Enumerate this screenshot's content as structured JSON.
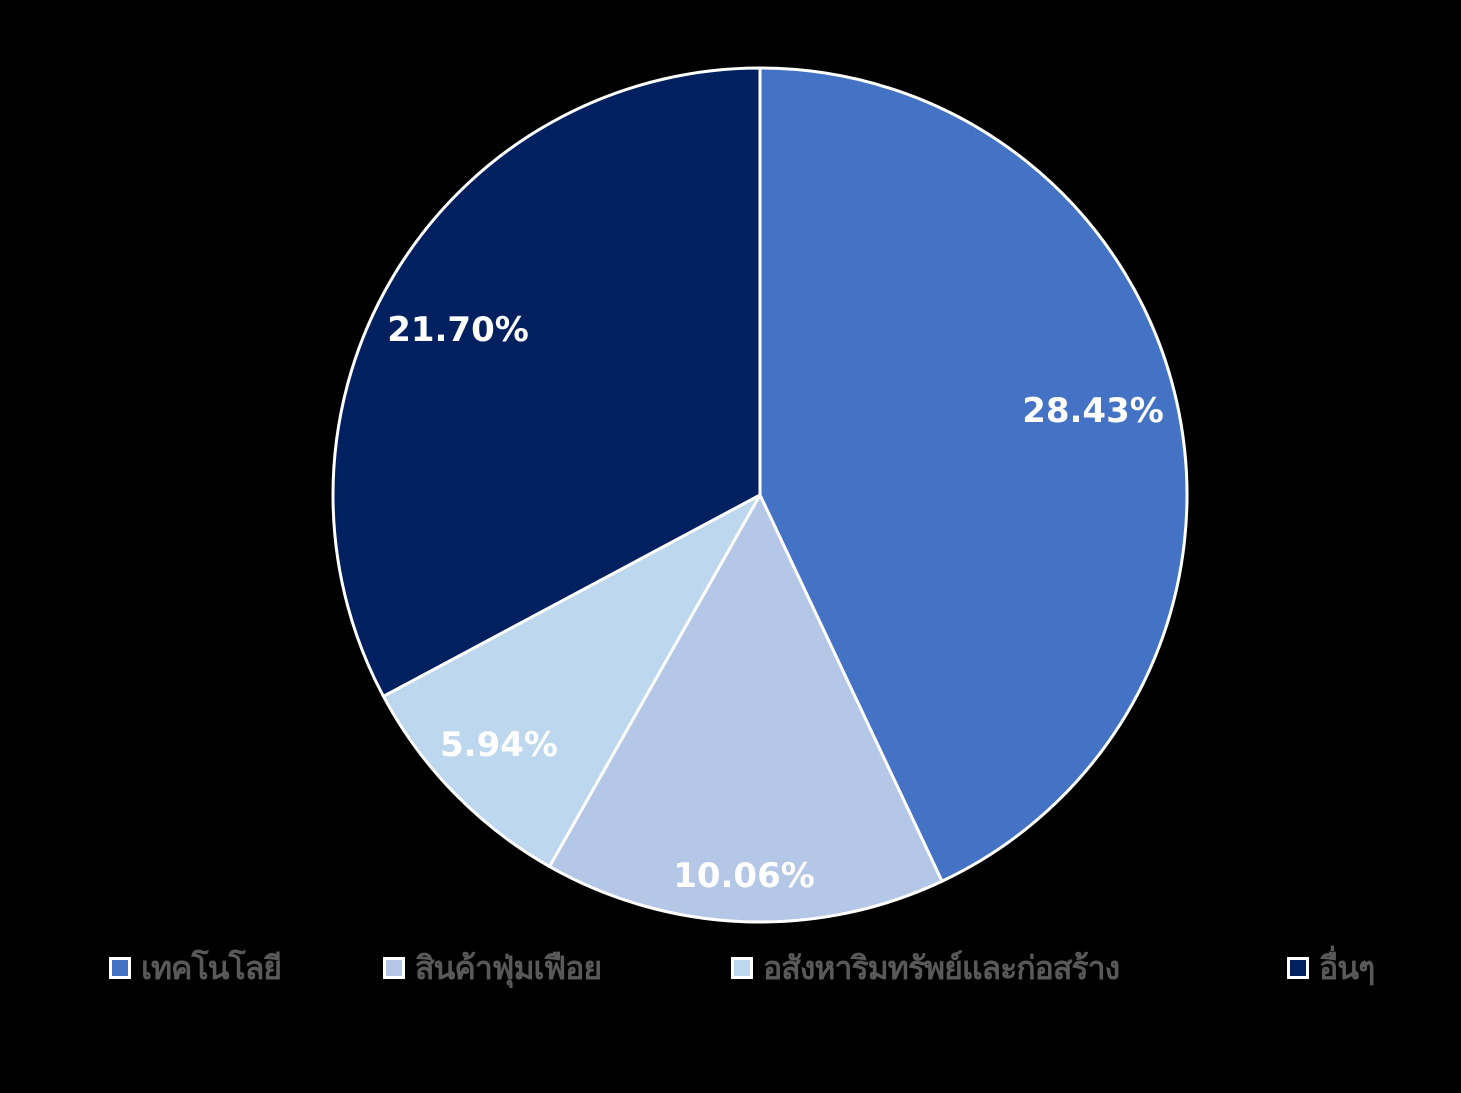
{
  "chart_data": {
    "type": "pie",
    "title": "",
    "categories": [
      "เทคโนโลยี",
      "สินค้าฟุ่มเฟือย",
      "อสังหาริมทรัพย์และก่อสร้าง",
      "อื่นๆ"
    ],
    "values": [
      28.43,
      10.06,
      5.94,
      21.7
    ],
    "labels": [
      "28.43%",
      "10.06%",
      "5.94%",
      "21.70%"
    ],
    "colors": [
      "#4472C4",
      "#B4C7E7",
      "#BDD7EE",
      "#002060"
    ],
    "start_angle_deg": 0,
    "direction": "clockwise",
    "legend_position": "bottom",
    "background": "#000000"
  },
  "legend": {
    "items": [
      {
        "label": "เทคโนโลยี",
        "color": "#4472C4"
      },
      {
        "label": "สินค้าฟุ่มเฟือย",
        "color": "#B4C7E7"
      },
      {
        "label": "อสังหาริมทรัพย์และก่อสร้าง",
        "color": "#BDD7EE"
      },
      {
        "label": "อื่นๆ",
        "color": "#002060"
      }
    ]
  }
}
